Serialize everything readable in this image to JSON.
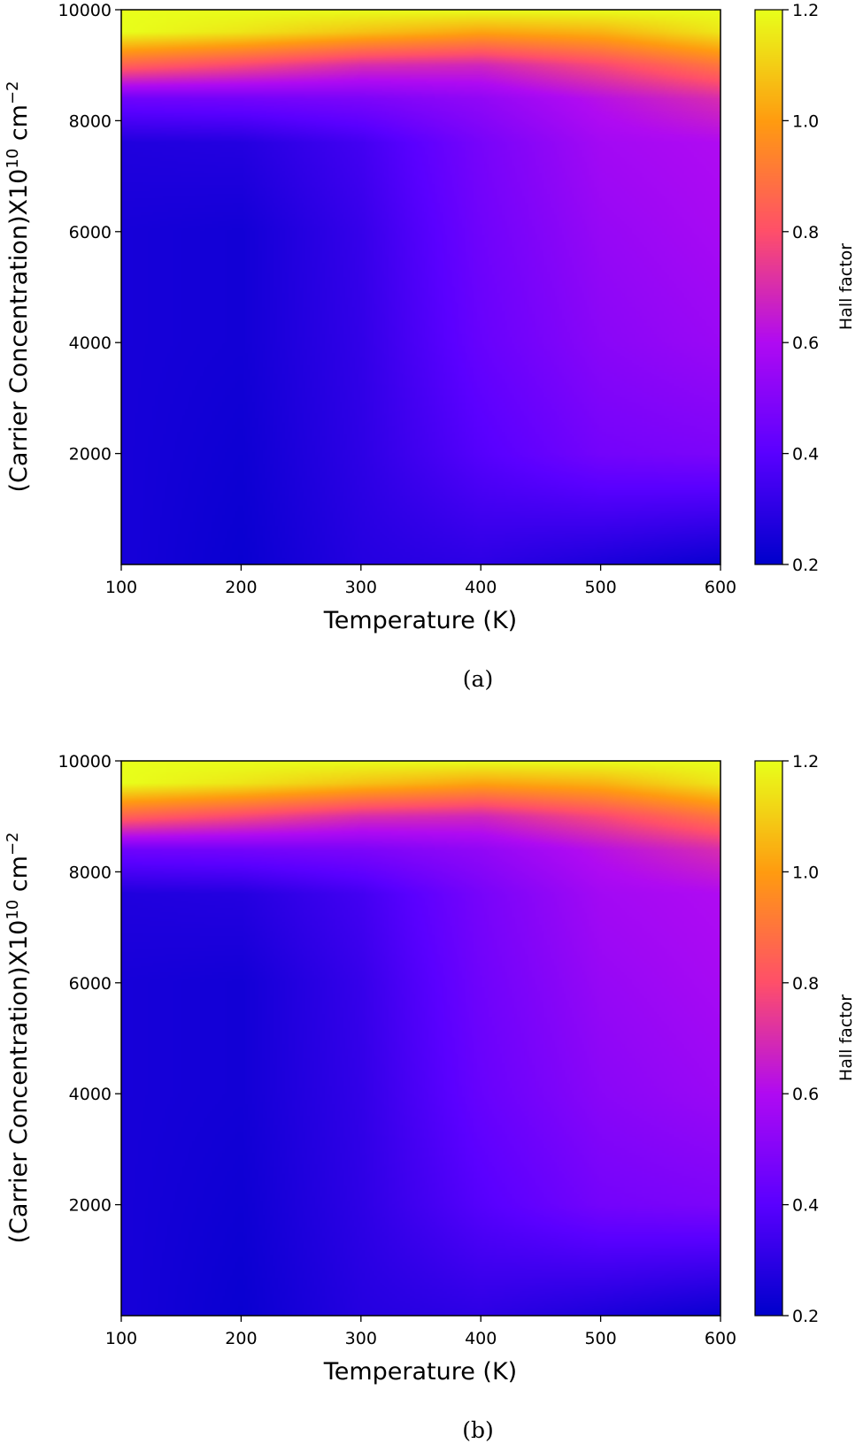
{
  "colors": {
    "colormap_stops": [
      "#0000cc",
      "#5a00ff",
      "#b00af2",
      "#ff4f6a",
      "#ff9b10",
      "#e8ff1a"
    ]
  },
  "chart_data": [
    {
      "type": "heatmap",
      "panel_caption": "(a)",
      "xlabel": "Temperature (K)",
      "ylabel_main": "(Carrier Concentration)X10",
      "ylabel_exp": "10",
      "ylabel_unit": " cm",
      "ylabel_unit_exp": "−2",
      "xlim": [
        100,
        600
      ],
      "ylim": [
        0,
        10000
      ],
      "xticks": [
        "100",
        "200",
        "300",
        "400",
        "500",
        "600"
      ],
      "yticks": [
        "2000",
        "4000",
        "6000",
        "8000",
        "10000"
      ],
      "colorbar": {
        "label": "Hall factor",
        "range": [
          0.2,
          1.2
        ],
        "ticks": [
          "0.2",
          "0.4",
          "0.6",
          "0.8",
          "1.0",
          "1.2"
        ]
      },
      "temperature_K": [
        100,
        200,
        300,
        400,
        500,
        600
      ],
      "concentration": [
        0,
        2000,
        4000,
        6000,
        7600,
        8400,
        9000,
        9600,
        10000
      ],
      "hall_factor": [
        [
          0.25,
          0.22,
          0.28,
          0.3,
          0.26,
          0.22
        ],
        [
          0.25,
          0.23,
          0.3,
          0.39,
          0.46,
          0.48
        ],
        [
          0.25,
          0.24,
          0.31,
          0.43,
          0.51,
          0.55
        ],
        [
          0.25,
          0.24,
          0.32,
          0.45,
          0.54,
          0.58
        ],
        [
          0.27,
          0.28,
          0.35,
          0.47,
          0.57,
          0.6
        ],
        [
          0.45,
          0.46,
          0.48,
          0.53,
          0.62,
          0.7
        ],
        [
          0.85,
          0.78,
          0.7,
          0.68,
          0.78,
          0.9
        ],
        [
          1.2,
          1.15,
          1.08,
          1.02,
          1.05,
          1.15
        ],
        [
          1.2,
          1.2,
          1.2,
          1.2,
          1.2,
          1.2
        ]
      ]
    },
    {
      "type": "heatmap",
      "panel_caption": "(b)",
      "xlabel": "Temperature (K)",
      "ylabel_main": "(Carrier Concentration)X10",
      "ylabel_exp": "10",
      "ylabel_unit": " cm",
      "ylabel_unit_exp": "−2",
      "xlim": [
        100,
        600
      ],
      "ylim": [
        0,
        10000
      ],
      "xticks": [
        "100",
        "200",
        "300",
        "400",
        "500",
        "600"
      ],
      "yticks": [
        "2000",
        "4000",
        "6000",
        "8000",
        "10000"
      ],
      "colorbar": {
        "label": "Hall factor",
        "range": [
          0.2,
          1.2
        ],
        "ticks": [
          "0.2",
          "0.4",
          "0.6",
          "0.8",
          "1.0",
          "1.2"
        ]
      },
      "temperature_K": [
        100,
        200,
        300,
        400,
        500,
        600
      ],
      "concentration": [
        0,
        2000,
        4000,
        6000,
        7600,
        8400,
        9000,
        9600,
        10000
      ],
      "hall_factor": [
        [
          0.25,
          0.22,
          0.28,
          0.3,
          0.26,
          0.22
        ],
        [
          0.25,
          0.23,
          0.3,
          0.39,
          0.46,
          0.48
        ],
        [
          0.25,
          0.24,
          0.31,
          0.43,
          0.51,
          0.55
        ],
        [
          0.25,
          0.24,
          0.32,
          0.45,
          0.54,
          0.58
        ],
        [
          0.27,
          0.28,
          0.35,
          0.47,
          0.57,
          0.6
        ],
        [
          0.45,
          0.46,
          0.48,
          0.53,
          0.62,
          0.7
        ],
        [
          0.85,
          0.78,
          0.7,
          0.68,
          0.78,
          0.9
        ],
        [
          1.2,
          1.15,
          1.08,
          1.02,
          1.05,
          1.15
        ],
        [
          1.2,
          1.2,
          1.2,
          1.2,
          1.2,
          1.2
        ]
      ]
    }
  ]
}
